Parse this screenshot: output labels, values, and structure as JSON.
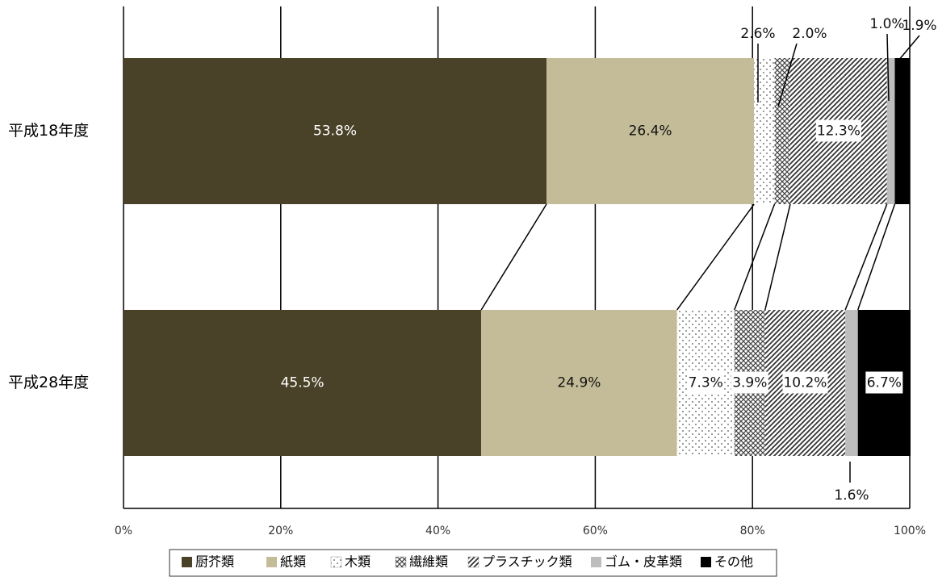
{
  "chart_data": {
    "type": "bar",
    "orientation": "horizontal",
    "stacked": true,
    "percent": true,
    "categories": [
      "平成18年度",
      "平成28年度"
    ],
    "series": [
      {
        "name": "厨芥類",
        "values": [
          53.8,
          45.5
        ],
        "labels": [
          "53.8%",
          "45.5%"
        ],
        "color": "#4a4228",
        "pattern": "solid"
      },
      {
        "name": "紙類",
        "values": [
          26.4,
          24.9
        ],
        "labels": [
          "26.4%",
          "24.9%"
        ],
        "color": "#c4bc98",
        "pattern": "solid"
      },
      {
        "name": "木類",
        "values": [
          2.6,
          7.3
        ],
        "labels": [
          "2.6%",
          "7.3%"
        ],
        "color": "#ffffff",
        "pattern": "dots"
      },
      {
        "name": "繊維類",
        "values": [
          2.0,
          3.9
        ],
        "labels": [
          "2.0%",
          "3.9%"
        ],
        "color": "#ffffff",
        "pattern": "crosshatch"
      },
      {
        "name": "プラスチック類",
        "values": [
          12.3,
          10.2
        ],
        "labels": [
          "12.3%",
          "10.2%"
        ],
        "color": "#ffffff",
        "pattern": "diagonal"
      },
      {
        "name": "ゴム・皮革類",
        "values": [
          1.0,
          1.6
        ],
        "labels": [
          "1.0%",
          "1.6%"
        ],
        "color": "#bdbdbd",
        "pattern": "solid"
      },
      {
        "name": "その他",
        "values": [
          1.9,
          6.7
        ],
        "labels": [
          "1.9%",
          "6.7%"
        ],
        "color": "#000000",
        "pattern": "solid"
      }
    ],
    "xlim": [
      0,
      100
    ],
    "xticks": [
      "0%",
      "20%",
      "40%",
      "60%",
      "80%",
      "100%"
    ],
    "grid": true,
    "legend": "bottom",
    "title": "",
    "xlabel": "",
    "ylabel": ""
  }
}
